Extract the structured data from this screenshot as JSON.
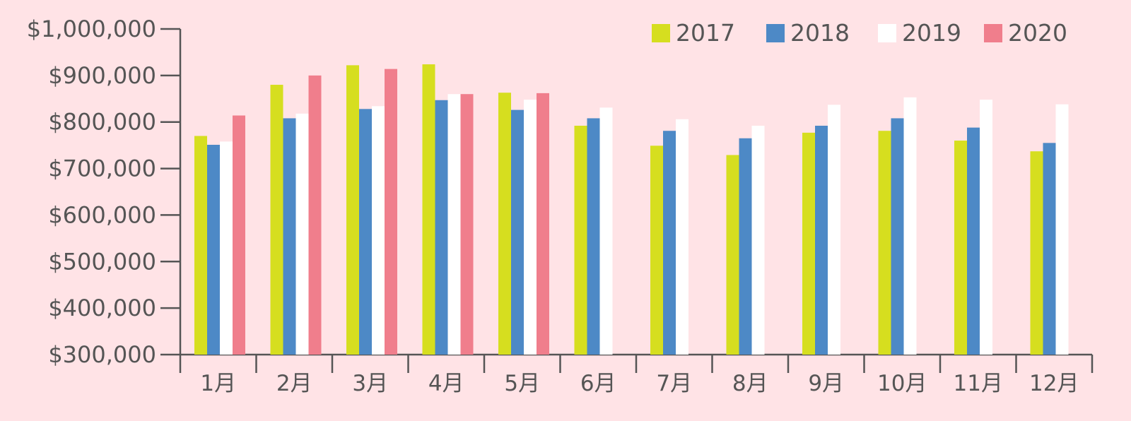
{
  "chart_data": {
    "type": "bar",
    "categories": [
      "1月",
      "2月",
      "3月",
      "4月",
      "5月",
      "6月",
      "7月",
      "8月",
      "9月",
      "10月",
      "11月",
      "12月"
    ],
    "series": [
      {
        "name": "2017",
        "color": "#d6de1f",
        "values": [
          770000,
          880000,
          922000,
          924000,
          863000,
          792000,
          749000,
          729000,
          777000,
          781000,
          760000,
          737000
        ]
      },
      {
        "name": "2018",
        "color": "#4d89c6",
        "values": [
          751000,
          808000,
          828000,
          847000,
          826000,
          808000,
          781000,
          765000,
          792000,
          808000,
          788000,
          755000
        ]
      },
      {
        "name": "2019",
        "color": "#ffffff",
        "values": [
          758000,
          818000,
          834000,
          860000,
          848000,
          831000,
          806000,
          792000,
          837000,
          853000,
          848000,
          838000
        ]
      },
      {
        "name": "2020",
        "color": "#f07e8c",
        "values": [
          814000,
          900000,
          914000,
          860000,
          862000,
          null,
          null,
          null,
          null,
          null,
          null,
          null
        ]
      }
    ],
    "yticks": [
      "$300,000",
      "$400,000",
      "$500,000",
      "$600,000",
      "$700,000",
      "$800,000",
      "$900,000",
      "$1,000,000"
    ],
    "ylim": [
      300000,
      1000000
    ],
    "title": "",
    "xlabel": "",
    "ylabel": "",
    "grid": false,
    "legend_position": "top-right",
    "background": "#ffe3e6",
    "axis_color": "#555555"
  }
}
